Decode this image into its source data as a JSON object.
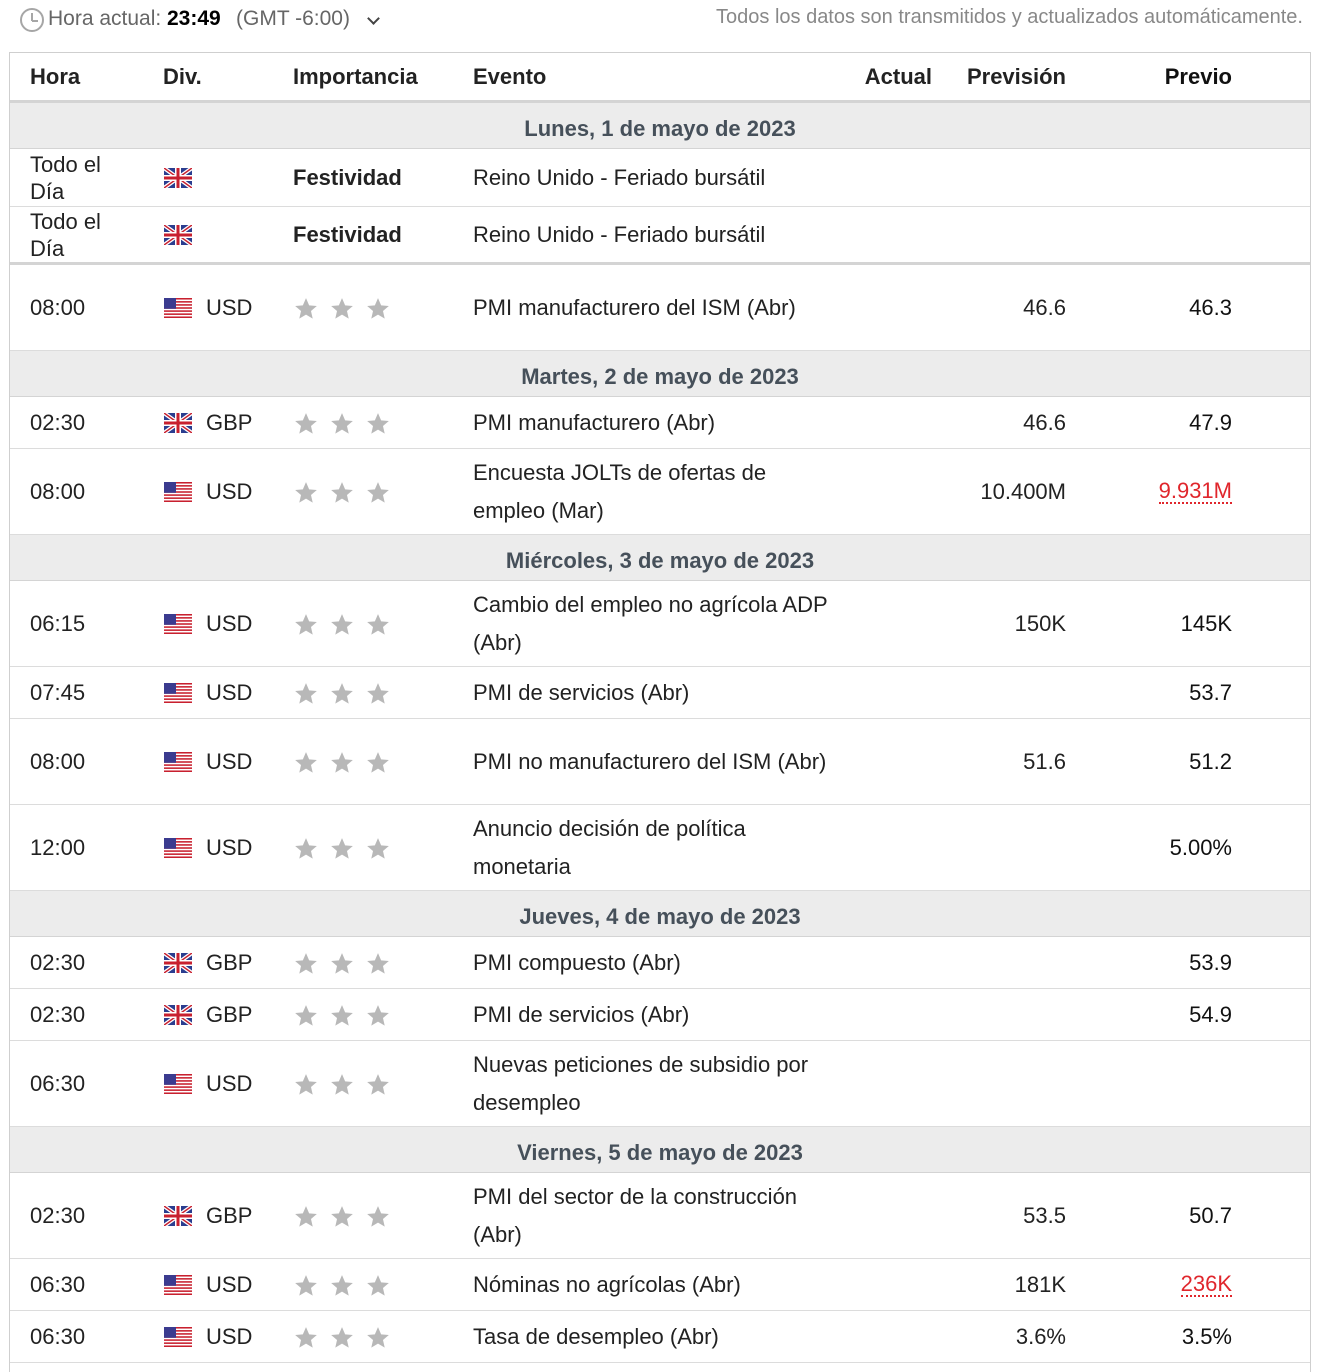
{
  "top": {
    "time_label": "Hora actual:",
    "time_value": "23:49",
    "timezone": "(GMT -6:00)",
    "auto_note": "Todos los datos son transmitidos y actualizados automáticamente."
  },
  "columns": {
    "hora": "Hora",
    "div": "Div.",
    "importancia": "Importancia",
    "evento": "Evento",
    "actual": "Actual",
    "prevision": "Previsión",
    "previo": "Previo"
  },
  "colors": {
    "negative": "#e0262c",
    "day_header_bg": "#ececec",
    "star": "#b8b8b8"
  },
  "days": [
    {
      "title": "Lunes, 1 de mayo de 2023",
      "events": [
        {
          "time": "Todo el Día",
          "flag": "uk-flag-icon",
          "currency": "",
          "importance": "Festividad",
          "event": "Reino Unido - Feriado bursátil",
          "actual": "",
          "forecast": "",
          "previous": ""
        },
        {
          "time": "Todo el Día",
          "flag": "uk-flag-icon",
          "currency": "",
          "importance": "Festividad",
          "event": "Reino Unido - Feriado bursátil",
          "actual": "",
          "forecast": "",
          "previous": ""
        },
        {
          "time": "08:00",
          "flag": "us-flag-icon",
          "currency": "USD",
          "importance": 3,
          "event": "PMI manufacturero del ISM (Abr)",
          "actual": "",
          "forecast": "46.6",
          "previous": "46.3"
        }
      ]
    },
    {
      "title": "Martes, 2 de mayo de 2023",
      "events": [
        {
          "time": "02:30",
          "flag": "uk-flag-icon",
          "currency": "GBP",
          "importance": 3,
          "event": "PMI manufacturero (Abr)",
          "actual": "",
          "forecast": "46.6",
          "previous": "47.9"
        },
        {
          "time": "08:00",
          "flag": "us-flag-icon",
          "currency": "USD",
          "importance": 3,
          "event": "Encuesta JOLTs de ofertas de empleo (Mar)",
          "actual": "",
          "forecast": "10.400M",
          "previous": "9.931M",
          "previous_revised": true
        }
      ]
    },
    {
      "title": "Miércoles, 3 de mayo de 2023",
      "events": [
        {
          "time": "06:15",
          "flag": "us-flag-icon",
          "currency": "USD",
          "importance": 3,
          "event": "Cambio del empleo no agrícola ADP (Abr)",
          "actual": "",
          "forecast": "150K",
          "previous": "145K"
        },
        {
          "time": "07:45",
          "flag": "us-flag-icon",
          "currency": "USD",
          "importance": 3,
          "event": "PMI de servicios (Abr)",
          "actual": "",
          "forecast": "",
          "previous": "53.7"
        },
        {
          "time": "08:00",
          "flag": "us-flag-icon",
          "currency": "USD",
          "importance": 3,
          "event": "PMI no manufacturero del ISM (Abr)",
          "actual": "",
          "forecast": "51.6",
          "previous": "51.2"
        },
        {
          "time": "12:00",
          "flag": "us-flag-icon",
          "currency": "USD",
          "importance": 3,
          "event": "Anuncio decisión de política monetaria",
          "actual": "",
          "forecast": "",
          "previous": "5.00%"
        }
      ]
    },
    {
      "title": "Jueves, 4 de mayo de 2023",
      "events": [
        {
          "time": "02:30",
          "flag": "uk-flag-icon",
          "currency": "GBP",
          "importance": 3,
          "event": "PMI compuesto (Abr)",
          "actual": "",
          "forecast": "",
          "previous": "53.9"
        },
        {
          "time": "02:30",
          "flag": "uk-flag-icon",
          "currency": "GBP",
          "importance": 3,
          "event": "PMI de servicios (Abr)",
          "actual": "",
          "forecast": "",
          "previous": "54.9"
        },
        {
          "time": "06:30",
          "flag": "us-flag-icon",
          "currency": "USD",
          "importance": 3,
          "event": "Nuevas peticiones de subsidio por desempleo",
          "actual": "",
          "forecast": "",
          "previous": ""
        }
      ]
    },
    {
      "title": "Viernes, 5 de mayo de 2023",
      "events": [
        {
          "time": "02:30",
          "flag": "uk-flag-icon",
          "currency": "GBP",
          "importance": 3,
          "event": "PMI del sector de la construcción (Abr)",
          "actual": "",
          "forecast": "53.5",
          "previous": "50.7"
        },
        {
          "time": "06:30",
          "flag": "us-flag-icon",
          "currency": "USD",
          "importance": 3,
          "event": "Nóminas no agrícolas (Abr)",
          "actual": "",
          "forecast": "181K",
          "previous": "236K",
          "previous_revised": true
        },
        {
          "time": "06:30",
          "flag": "us-flag-icon",
          "currency": "USD",
          "importance": 3,
          "event": "Tasa de desempleo (Abr)",
          "actual": "",
          "forecast": "3.6%",
          "previous": "3.5%"
        }
      ]
    }
  ]
}
